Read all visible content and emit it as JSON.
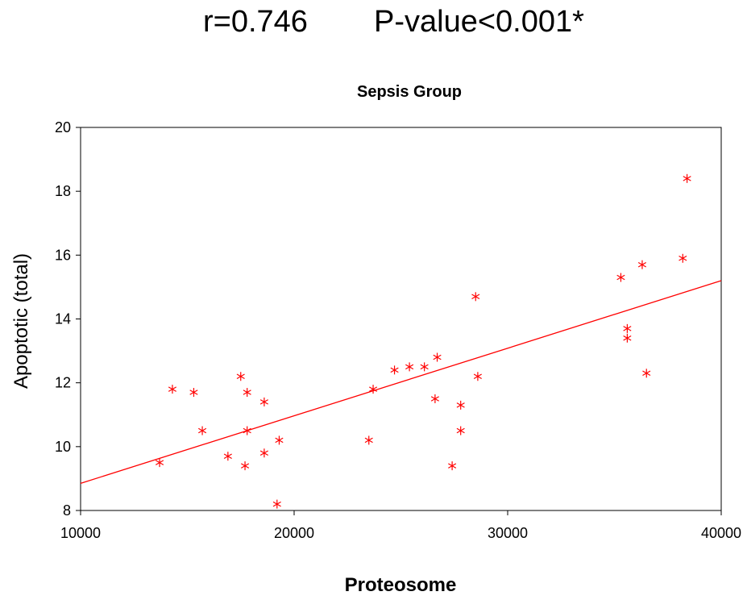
{
  "header": {
    "r_text": "r=0.746",
    "p_text": "P-value<0.001*"
  },
  "chart_data": {
    "type": "scatter",
    "title": "Sepsis Group",
    "xlabel": "Proteosome",
    "ylabel": "Apoptotic (total)",
    "xlim": [
      10000,
      40000
    ],
    "ylim": [
      8,
      20
    ],
    "x_ticks": [
      10000,
      20000,
      30000,
      40000
    ],
    "y_ticks": [
      8,
      10,
      12,
      14,
      16,
      18,
      20
    ],
    "grid": false,
    "marker_color": "#ff0000",
    "marker": "asterisk",
    "fit_line": {
      "x": [
        10000,
        40000
      ],
      "y": [
        8.85,
        15.2
      ]
    },
    "points": [
      {
        "x": 13700,
        "y": 9.5
      },
      {
        "x": 14300,
        "y": 11.8
      },
      {
        "x": 15300,
        "y": 11.7
      },
      {
        "x": 15700,
        "y": 10.5
      },
      {
        "x": 16900,
        "y": 9.7
      },
      {
        "x": 17500,
        "y": 12.2
      },
      {
        "x": 17700,
        "y": 9.4
      },
      {
        "x": 17800,
        "y": 11.7
      },
      {
        "x": 17800,
        "y": 10.5
      },
      {
        "x": 18600,
        "y": 11.4
      },
      {
        "x": 18600,
        "y": 9.8
      },
      {
        "x": 19200,
        "y": 8.2
      },
      {
        "x": 19300,
        "y": 10.2
      },
      {
        "x": 23500,
        "y": 10.2
      },
      {
        "x": 23700,
        "y": 11.8
      },
      {
        "x": 24700,
        "y": 12.4
      },
      {
        "x": 25400,
        "y": 12.5
      },
      {
        "x": 26100,
        "y": 12.5
      },
      {
        "x": 26600,
        "y": 11.5
      },
      {
        "x": 26700,
        "y": 12.8
      },
      {
        "x": 27400,
        "y": 9.4
      },
      {
        "x": 27800,
        "y": 11.3
      },
      {
        "x": 27800,
        "y": 10.5
      },
      {
        "x": 28500,
        "y": 14.7
      },
      {
        "x": 28600,
        "y": 12.2
      },
      {
        "x": 35300,
        "y": 15.3
      },
      {
        "x": 35600,
        "y": 13.7
      },
      {
        "x": 35600,
        "y": 13.4
      },
      {
        "x": 36300,
        "y": 15.7
      },
      {
        "x": 36500,
        "y": 12.3
      },
      {
        "x": 38200,
        "y": 15.9
      },
      {
        "x": 38400,
        "y": 18.4
      }
    ]
  }
}
